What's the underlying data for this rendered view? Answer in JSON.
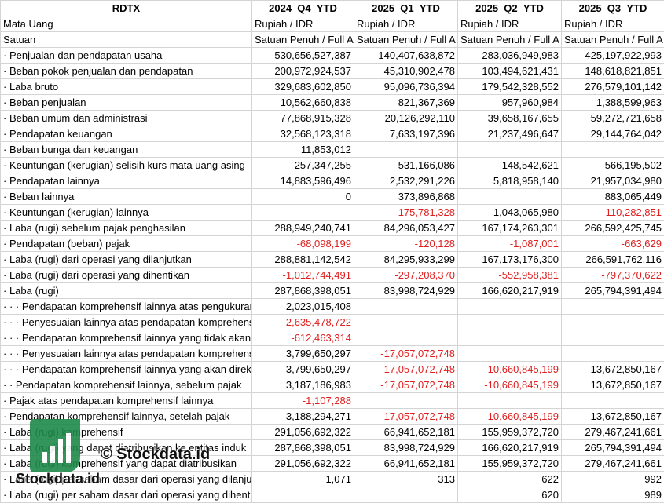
{
  "table": {
    "header": [
      "RDTX",
      "2024_Q4_YTD",
      "2025_Q1_YTD",
      "2025_Q2_YTD",
      "2025_Q3_YTD"
    ],
    "rows": [
      [
        "Mata Uang",
        "Rupiah / IDR",
        "Rupiah / IDR",
        "Rupiah / IDR",
        "Rupiah / IDR"
      ],
      [
        "Satuan",
        "Satuan Penuh / Full A",
        "Satuan Penuh / Full A",
        "Satuan Penuh / Full A",
        "Satuan Penuh / Full A"
      ],
      [
        "· Penjualan dan pendapatan usaha",
        "530,656,527,387",
        "140,407,638,872",
        "283,036,949,983",
        "425,197,922,993"
      ],
      [
        "· Beban pokok penjualan dan pendapatan",
        "200,972,924,537",
        "45,310,902,478",
        "103,494,621,431",
        "148,618,821,851"
      ],
      [
        "· Laba bruto",
        "329,683,602,850",
        "95,096,736,394",
        "179,542,328,552",
        "276,579,101,142"
      ],
      [
        "· Beban penjualan",
        "10,562,660,838",
        "821,367,369",
        "957,960,984",
        "1,388,599,963"
      ],
      [
        "· Beban umum dan administrasi",
        "77,868,915,328",
        "20,126,292,110",
        "39,658,167,655",
        "59,272,721,658"
      ],
      [
        "· Pendapatan keuangan",
        "32,568,123,318",
        "7,633,197,396",
        "21,237,496,647",
        "29,144,764,042"
      ],
      [
        "· Beban bunga dan keuangan",
        "11,853,012",
        null,
        null,
        null
      ],
      [
        "· Keuntungan (kerugian) selisih kurs mata uang asing",
        "257,347,255",
        "531,166,086",
        "148,542,621",
        "566,195,502"
      ],
      [
        "· Pendapatan lainnya",
        "14,883,596,496",
        "2,532,291,226",
        "5,818,958,140",
        "21,957,034,980"
      ],
      [
        "· Beban lainnya",
        "0",
        "373,896,868",
        null,
        "883,065,449"
      ],
      [
        "· Keuntungan (kerugian) lainnya",
        null,
        "-175,781,328",
        "1,043,065,980",
        "-110,282,851"
      ],
      [
        "· Laba (rugi) sebelum pajak penghasilan",
        "288,949,240,741",
        "84,296,053,427",
        "167,174,263,301",
        "266,592,425,745"
      ],
      [
        "· Pendapatan (beban) pajak",
        "-68,098,199",
        "-120,128",
        "-1,087,001",
        "-663,629"
      ],
      [
        "· Laba (rugi) dari operasi yang dilanjutkan",
        "288,881,142,542",
        "84,295,933,299",
        "167,173,176,300",
        "266,591,762,116"
      ],
      [
        "· Laba (rugi) dari operasi yang dihentikan",
        "-1,012,744,491",
        "-297,208,370",
        "-552,958,381",
        "-797,370,622"
      ],
      [
        "· Laba (rugi)",
        "287,868,398,051",
        "83,998,724,929",
        "166,620,217,919",
        "265,794,391,494"
      ],
      [
        "· · · Pendapatan komprehensif lainnya atas pengukuran",
        "2,023,015,408",
        null,
        null,
        null
      ],
      [
        "· · · Penyesuaian lainnya atas pendapatan komprehensif",
        "-2,635,478,722",
        null,
        null,
        null
      ],
      [
        "· · · Pendapatan komprehensif lainnya yang tidak akan",
        "-612,463,314",
        null,
        null,
        null
      ],
      [
        "· · · Penyesuaian lainnya atas pendapatan komprehensif",
        "3,799,650,297",
        "-17,057,072,748",
        null,
        null
      ],
      [
        "· · · Pendapatan komprehensif lainnya yang akan direklasifikasi",
        "3,799,650,297",
        "-17,057,072,748",
        "-10,660,845,199",
        "13,672,850,167"
      ],
      [
        "· · Pendapatan komprehensif lainnya, sebelum pajak",
        "3,187,186,983",
        "-17,057,072,748",
        "-10,660,845,199",
        "13,672,850,167"
      ],
      [
        "· Pajak atas pendapatan komprehensif lainnya",
        "-1,107,288",
        null,
        null,
        null
      ],
      [
        "· Pendapatan komprehensif lainnya, setelah pajak",
        "3,188,294,271",
        "-17,057,072,748",
        "-10,660,845,199",
        "13,672,850,167"
      ],
      [
        "· Laba (rugi) komprehensif",
        "291,056,692,322",
        "66,941,652,181",
        "155,959,372,720",
        "279,467,241,661"
      ],
      [
        "· Laba (rugi) yang dapat diatribusikan ke entitas induk",
        "287,868,398,051",
        "83,998,724,929",
        "166,620,217,919",
        "265,794,391,494"
      ],
      [
        "· Laba (rugi) komprehensif yang dapat diatribusikan",
        "291,056,692,322",
        "66,941,652,181",
        "155,959,372,720",
        "279,467,241,661"
      ],
      [
        "· Laba (rugi) per saham dasar dari operasi yang dilanjutkan",
        "1,071",
        "313",
        "622",
        "992"
      ],
      [
        "· Laba (rugi) per saham dasar dari operasi yang dihentikan",
        null,
        null,
        "620",
        "989"
      ]
    ]
  },
  "watermark": {
    "text": "© Stockdata.id",
    "logo_text": "Stockdata.id"
  }
}
